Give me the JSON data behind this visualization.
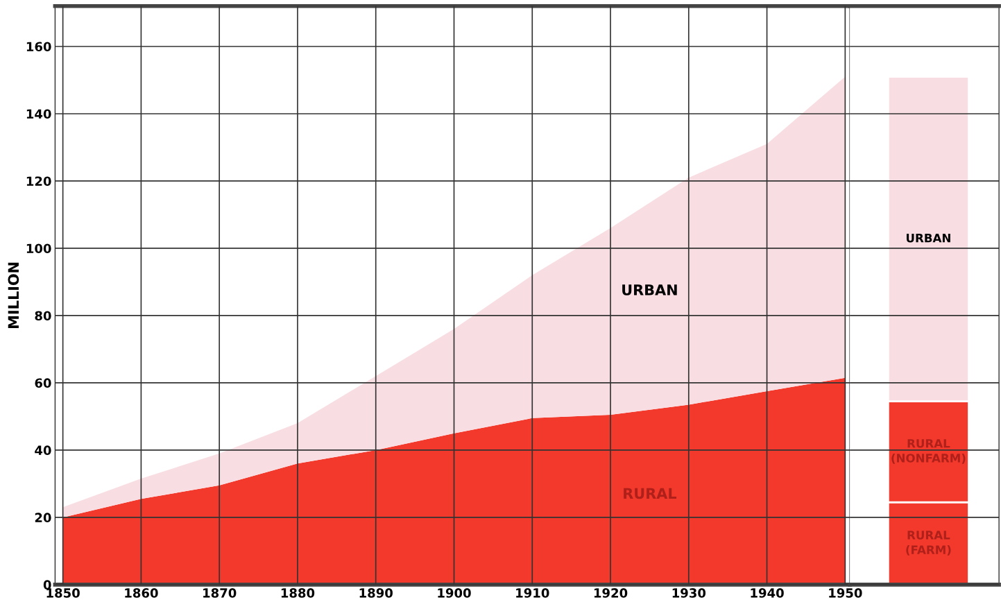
{
  "chart_data": [
    {
      "type": "area",
      "stacked": true,
      "ylabel": "MILLION",
      "x": [
        1850,
        1860,
        1870,
        1880,
        1890,
        1900,
        1910,
        1920,
        1930,
        1940,
        1950
      ],
      "xlim": [
        1849,
        1950.6
      ],
      "xticks": [
        1850,
        1860,
        1870,
        1880,
        1890,
        1900,
        1910,
        1920,
        1930,
        1940,
        1950
      ],
      "ylim": [
        0,
        172
      ],
      "yticks": [
        0,
        20,
        40,
        60,
        80,
        100,
        120,
        140,
        160
      ],
      "grid": true,
      "series": [
        {
          "name": "RURAL",
          "color": "#f2392b",
          "values": [
            20,
            25.5,
            29.5,
            36,
            40,
            45,
            49.5,
            50.5,
            53.5,
            57.5,
            61.5
          ]
        },
        {
          "name": "URBAN",
          "color": "#f8dde2",
          "values": [
            3,
            6,
            9.5,
            12,
            22,
            31,
            42.5,
            55.5,
            67.5,
            73.5,
            89.5
          ]
        }
      ]
    },
    {
      "type": "bar",
      "stacked": true,
      "categories": [
        null
      ],
      "ylim": [
        0,
        172
      ],
      "tick_labels": false,
      "grid": "y",
      "series": [
        {
          "name": "RURAL\n(FARM)",
          "color": "#f2392b",
          "values": [
            24.5
          ]
        },
        {
          "name": "RURAL\n(NONFARM)",
          "color": "#f2392b",
          "values": [
            30
          ]
        },
        {
          "name": "URBAN",
          "color": "#f8dde2",
          "values": [
            96.5
          ]
        }
      ]
    }
  ]
}
